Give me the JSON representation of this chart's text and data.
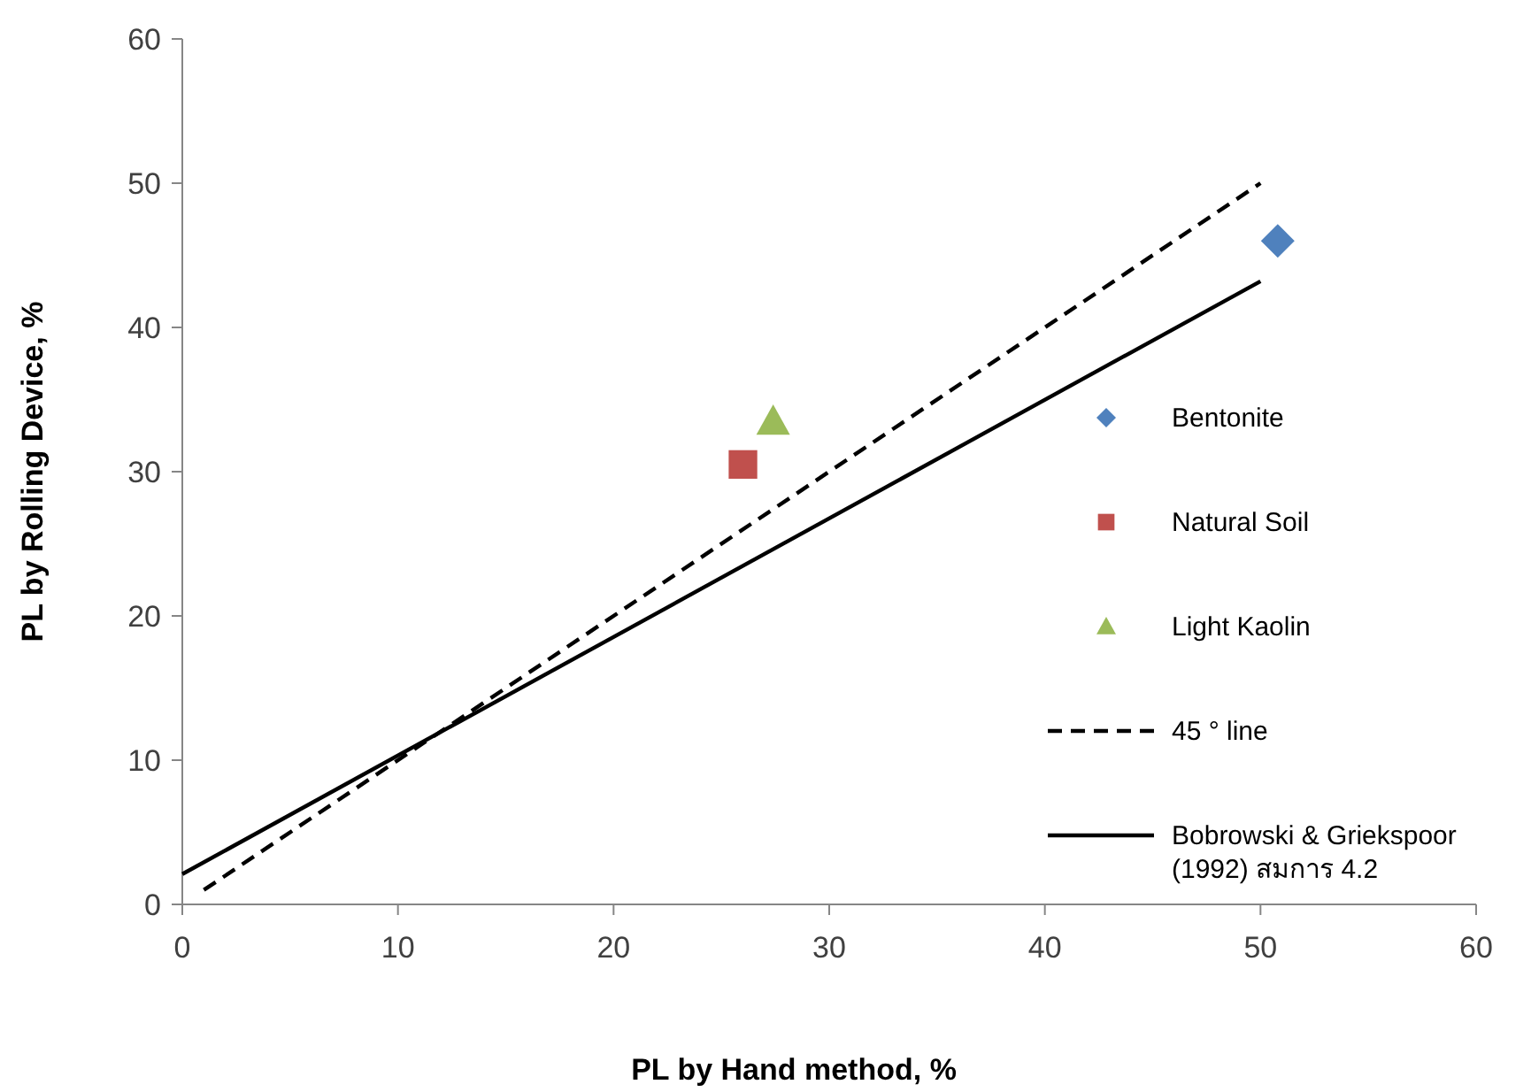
{
  "chart_data": {
    "type": "scatter",
    "xlabel": "PL by Hand method, %",
    "ylabel": "PL by Rolling Device, %",
    "xlim": [
      0,
      60
    ],
    "ylim": [
      0,
      60
    ],
    "xticks": [
      0,
      10,
      20,
      30,
      40,
      50,
      60
    ],
    "yticks": [
      0,
      10,
      20,
      30,
      40,
      50,
      60
    ],
    "grid": false,
    "legend": "right",
    "series": [
      {
        "name": "Bentonite",
        "marker": "diamond",
        "color": "#4f81bd",
        "x": [
          50.8
        ],
        "values": [
          46
        ]
      },
      {
        "name": "Natural Soil",
        "marker": "square",
        "color": "#c0504d",
        "x": [
          26
        ],
        "values": [
          30.5
        ]
      },
      {
        "name": "Light Kaolin",
        "marker": "triangle",
        "color": "#9bbb59",
        "x": [
          27.4
        ],
        "values": [
          33.5
        ]
      },
      {
        "name": "45 ° line",
        "type": "line",
        "line_style": "dashed",
        "color": "#000000",
        "x": [
          1,
          50
        ],
        "values": [
          1,
          50
        ]
      },
      {
        "name": "Bobrowski & Griekspoor (1992) สมการ 4.2",
        "type": "line",
        "line_style": "solid",
        "color": "#000000",
        "x": [
          0,
          50
        ],
        "values": [
          2.1,
          43.2
        ]
      }
    ]
  }
}
